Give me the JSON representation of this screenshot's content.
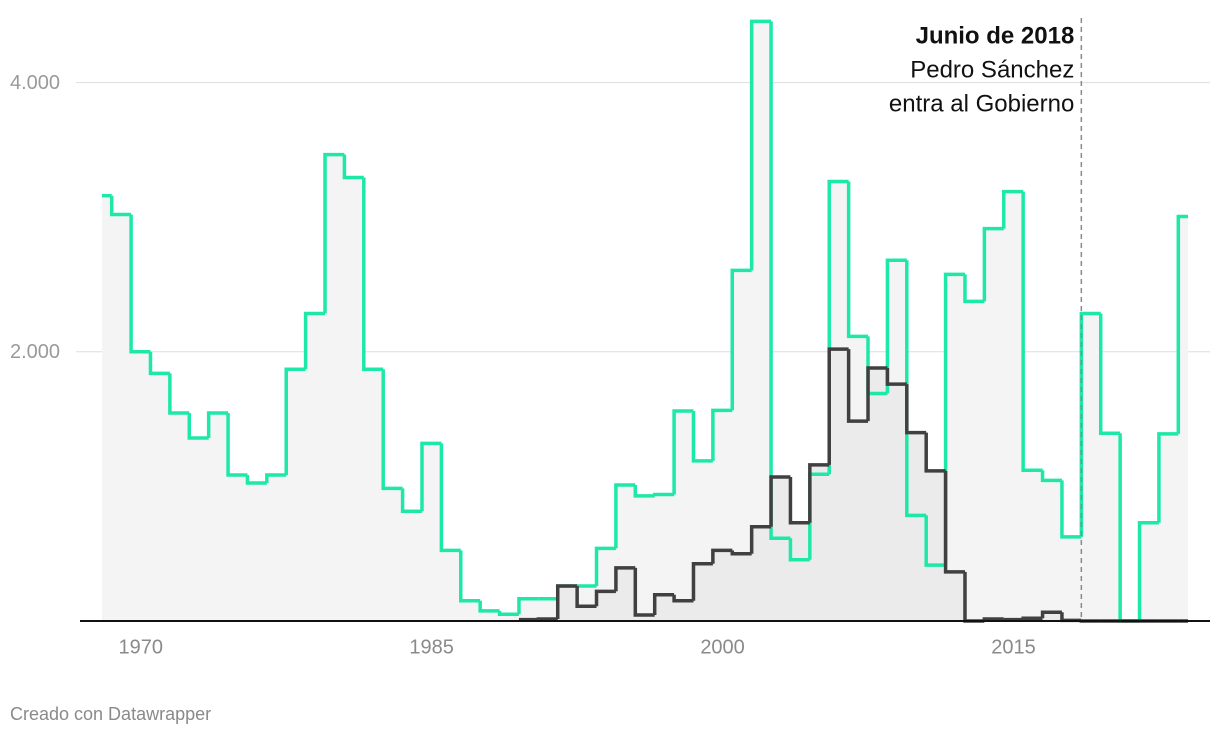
{
  "chart_data": {
    "type": "step",
    "x": [
      1968,
      1969,
      1970,
      1971,
      1972,
      1973,
      1974,
      1975,
      1976,
      1977,
      1978,
      1979,
      1980,
      1981,
      1982,
      1983,
      1984,
      1985,
      1986,
      1987,
      1988,
      1989,
      1990,
      1991,
      1992,
      1993,
      1994,
      1995,
      1996,
      1997,
      1998,
      1999,
      2000,
      2001,
      2002,
      2003,
      2004,
      2005,
      2006,
      2007,
      2008,
      2009,
      2010,
      2011,
      2012,
      2013,
      2014,
      2015,
      2016,
      2017,
      2018,
      2019,
      2020,
      2021,
      2022,
      2023,
      2024
    ],
    "series": [
      {
        "color": "#1ee8a8",
        "fill": "#f4f4f4",
        "values": [
          3160,
          3020,
          2000,
          1840,
          1545,
          1360,
          1545,
          1085,
          1025,
          1085,
          1870,
          2285,
          3465,
          3295,
          1870,
          985,
          815,
          1320,
          525,
          150,
          75,
          50,
          165,
          165,
          260,
          260,
          540,
          1010,
          930,
          940,
          1560,
          1190,
          1565,
          2605,
          4455,
          615,
          455,
          1090,
          3265,
          2115,
          1690,
          2680,
          785,
          415,
          2575,
          2375,
          2915,
          3190,
          1120,
          1045,
          625,
          2285,
          1395,
          0,
          730,
          1390,
          3005
        ]
      },
      {
        "color": "#404040",
        "fill": "#ebebeb",
        "values": [
          null,
          null,
          null,
          null,
          null,
          null,
          null,
          null,
          null,
          null,
          null,
          null,
          null,
          null,
          null,
          null,
          null,
          null,
          null,
          null,
          null,
          null,
          10,
          15,
          260,
          110,
          220,
          395,
          45,
          195,
          150,
          425,
          525,
          500,
          700,
          1070,
          730,
          1160,
          2020,
          1485,
          1880,
          1760,
          1400,
          1115,
          365,
          0,
          15,
          10,
          20,
          65,
          5,
          0,
          0,
          0,
          0,
          0,
          0
        ]
      }
    ],
    "xlim": [
      1968,
      2024
    ],
    "ylim": [
      0,
      4480
    ],
    "xticks": [
      1970,
      1985,
      2000,
      2015
    ],
    "yticks": [
      {
        "value": 2000,
        "label": "2.000"
      },
      {
        "value": 4000,
        "label": "4.000"
      }
    ],
    "grid": true,
    "annotation": {
      "x": 2018.5,
      "lines": [
        "Junio de 2018",
        "Pedro Sánchez",
        "entra al Gobierno"
      ]
    },
    "footer": "Creado con Datawrapper"
  }
}
